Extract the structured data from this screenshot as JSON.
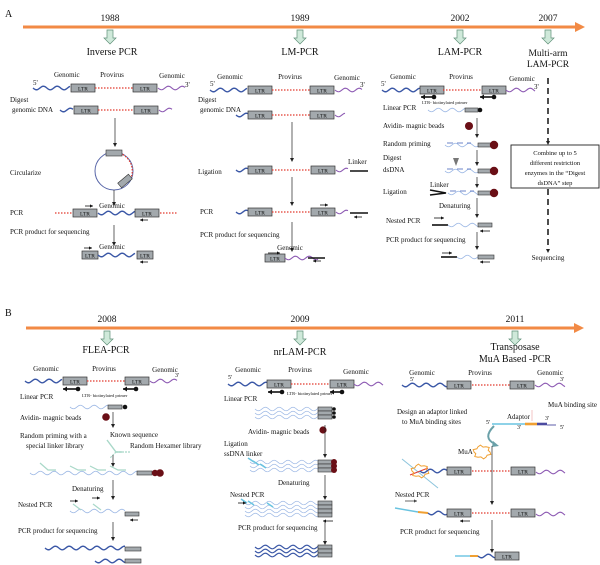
{
  "colors": {
    "timeline": "#f28a45",
    "genomic_5": "#3a57a6",
    "genomic_3": "#8d5ab3",
    "provirus": "#e23a2e",
    "ltr_box": "#a3a9ad",
    "bead": "#6a0f16",
    "arrow_fill": "#cfe9da",
    "linker": "#69c3e0",
    "transposon": "#f0a032"
  },
  "common": {
    "ltr": "LTR",
    "five": "5'",
    "three": "3'",
    "genomic": "Genomic",
    "provirus": "Provirus",
    "biotin_primer": "LTR- biotinylated primer"
  },
  "panel_a": {
    "label": "A",
    "methods": [
      {
        "year": "1988",
        "title": "Inverse PCR",
        "steps": [
          "Digest",
          "genomic DNA",
          "Circularize",
          "PCR",
          "PCR product for sequencing"
        ]
      },
      {
        "year": "1989",
        "title": "LM-PCR",
        "steps": [
          "Digest",
          "genomic DNA",
          "Ligation",
          "PCR",
          "PCR product for sequencing"
        ],
        "linker": "Linker"
      },
      {
        "year": "2002",
        "title": "LAM-PCR",
        "steps": [
          "Linear PCR",
          "Avidin- magnic beads",
          "Random priming",
          "Digest",
          "dsDNA",
          "Ligation",
          "Denaturing",
          "Nested PCR",
          "PCR product for sequencing"
        ],
        "linker": "Linker"
      },
      {
        "year": "2007",
        "title_lines": [
          "Multi-arm",
          "LAM-PCR"
        ],
        "note_lines": [
          "Combine up to 5",
          "different restriction",
          "enzymes in the “Digest",
          "dsDNA” step"
        ],
        "end": "Sequencing"
      }
    ]
  },
  "panel_b": {
    "label": "B",
    "methods": [
      {
        "year": "2008",
        "title": "FLEA-PCR",
        "steps": [
          "Linear PCR",
          "Avidin- magnic beads",
          "Random priming with a",
          "special linker library",
          "Known sequence",
          "Random Hexamer library",
          "Denaturing",
          "Nested PCR",
          "PCR product for sequencing"
        ]
      },
      {
        "year": "2009",
        "title": "nrLAM-PCR",
        "steps": [
          "Linear PCR",
          "Avidin- magnic beads",
          "Ligation",
          "ssDNA linker",
          "Denaturing",
          "Nested PCR",
          "PCR product for sequencing"
        ]
      },
      {
        "year": "2011",
        "title_lines": [
          "Transposase",
          "MuA Based -PCR"
        ],
        "steps": [
          "Design an adaptor linked",
          "to MuA binding sites",
          "MuA binding site",
          "Adaptor",
          "MuA",
          "Nested PCR",
          "PCR product for sequencing"
        ]
      }
    ]
  }
}
